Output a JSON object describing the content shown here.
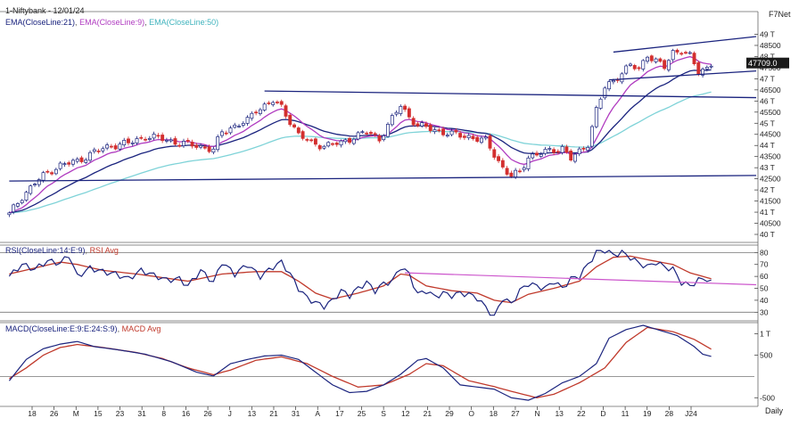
{
  "header": {
    "title": "1-Niftybank - 12/01/24",
    "brand": "F7Net",
    "ema21_label": "EMA(CloseLine:21)",
    "ema9_label": "EMA(CloseLine:9)",
    "ema50_label": "EMA(CloseLine:50)",
    "rsi_label": "RSI(CloseLine:14:E:9)",
    "rsi_avg_label": "RSI Avg",
    "macd_label": "MACD(CloseLine:E:9:E:24:S:9)",
    "macd_avg_label": "MACD Avg",
    "period_label": "Daily"
  },
  "colors": {
    "up": "#1a237e",
    "down": "#d32f2f",
    "ema9": "#b03bc0",
    "ema21": "#1a237e",
    "ema50": "#7fd3d8",
    "trendline": "#1a237e",
    "rsi": "#1a237e",
    "rsi_avg": "#c0392b",
    "rsi_trend": "#cc55cc",
    "macd": "#1a237e",
    "macd_avg": "#c0392b"
  },
  "chart_data": [
    {
      "type": "candlestick",
      "name": "price",
      "current_label": "47709.0",
      "yticks": [
        "49 T",
        "48500",
        "48 T",
        "47500",
        "47 T",
        "46500",
        "46 T",
        "45500",
        "45 T",
        "44500",
        "44 T",
        "43500",
        "43 T",
        "42500",
        "42 T",
        "41500",
        "41 T",
        "40500",
        "40 T"
      ],
      "ytick_values": [
        49000,
        48500,
        48000,
        47500,
        47000,
        46500,
        46000,
        45500,
        45000,
        44500,
        44000,
        43500,
        43000,
        42500,
        42000,
        41500,
        41000,
        40500,
        40000
      ],
      "ylim": [
        39800,
        49300
      ],
      "xticks": [
        "18",
        "26",
        "M",
        "15",
        "23",
        "31",
        "8",
        "16",
        "26",
        "J",
        "13",
        "21",
        "31",
        "A",
        "17",
        "25",
        "S",
        "12",
        "21",
        "29",
        "O",
        "18",
        "27",
        "N",
        "13",
        "22",
        "D",
        "11",
        "19",
        "28",
        "J24"
      ],
      "close_anchors": [
        [
          0,
          40900
        ],
        [
          3,
          41700
        ],
        [
          6,
          42300
        ],
        [
          9,
          42800
        ],
        [
          12,
          43100
        ],
        [
          16,
          43300
        ],
        [
          20,
          43700
        ],
        [
          24,
          44000
        ],
        [
          28,
          44100
        ],
        [
          32,
          44400
        ],
        [
          36,
          44300
        ],
        [
          40,
          44100
        ],
        [
          44,
          44000
        ],
        [
          48,
          43800
        ],
        [
          50,
          44600
        ],
        [
          52,
          44800
        ],
        [
          56,
          45100
        ],
        [
          58,
          45600
        ],
        [
          60,
          45800
        ],
        [
          62,
          46000
        ],
        [
          64,
          45700
        ],
        [
          66,
          45100
        ],
        [
          68,
          44500
        ],
        [
          71,
          44100
        ],
        [
          74,
          44000
        ],
        [
          78,
          44100
        ],
        [
          81,
          44400
        ],
        [
          84,
          44600
        ],
        [
          87,
          44300
        ],
        [
          90,
          45200
        ],
        [
          92,
          45800
        ],
        [
          94,
          45300
        ],
        [
          96,
          44900
        ],
        [
          100,
          44700
        ],
        [
          104,
          44500
        ],
        [
          108,
          44400
        ],
        [
          112,
          44200
        ],
        [
          114,
          43600
        ],
        [
          116,
          43000
        ],
        [
          118,
          42600
        ],
        [
          120,
          42800
        ],
        [
          122,
          43500
        ],
        [
          126,
          43700
        ],
        [
          130,
          43900
        ],
        [
          132,
          43400
        ],
        [
          134,
          43700
        ],
        [
          136,
          44100
        ],
        [
          138,
          45600
        ],
        [
          140,
          46600
        ],
        [
          142,
          46900
        ],
        [
          144,
          47300
        ],
        [
          146,
          47600
        ],
        [
          148,
          47400
        ],
        [
          150,
          48100
        ],
        [
          152,
          47800
        ],
        [
          154,
          47500
        ],
        [
          156,
          48200
        ],
        [
          158,
          48300
        ],
        [
          160,
          48000
        ],
        [
          162,
          47300
        ],
        [
          164,
          47500
        ],
        [
          165,
          47709
        ]
      ],
      "trendlines": [
        {
          "name": "support-42400",
          "points": [
            [
              0,
              42400
            ],
            [
              165,
              42650
            ]
          ]
        },
        {
          "name": "resistance-46100",
          "points": [
            [
              60,
              46450
            ],
            [
              165,
              46150
            ]
          ]
        },
        {
          "name": "channel-upper",
          "points": [
            [
              142,
              48200
            ],
            [
              166,
              48900
            ]
          ]
        },
        {
          "name": "channel-lower",
          "points": [
            [
              141,
              46950
            ],
            [
              166,
              47350
            ]
          ]
        }
      ]
    },
    {
      "type": "line",
      "name": "rsi",
      "yticks": [
        "80",
        "70",
        "60",
        "50",
        "40",
        "30"
      ],
      "ytick_values": [
        80,
        70,
        60,
        50,
        40,
        30
      ],
      "ylim": [
        25,
        84
      ],
      "anchors": [
        [
          0,
          60
        ],
        [
          3,
          70
        ],
        [
          6,
          66
        ],
        [
          9,
          73
        ],
        [
          12,
          71
        ],
        [
          14,
          78
        ],
        [
          16,
          60
        ],
        [
          19,
          67
        ],
        [
          22,
          64
        ],
        [
          25,
          62
        ],
        [
          28,
          58
        ],
        [
          31,
          65
        ],
        [
          34,
          61
        ],
        [
          37,
          57
        ],
        [
          40,
          58
        ],
        [
          42,
          52
        ],
        [
          45,
          65
        ],
        [
          48,
          55
        ],
        [
          50,
          72
        ],
        [
          53,
          62
        ],
        [
          56,
          70
        ],
        [
          59,
          60
        ],
        [
          62,
          68
        ],
        [
          64,
          72
        ],
        [
          66,
          62
        ],
        [
          68,
          50
        ],
        [
          70,
          42
        ],
        [
          72,
          38
        ],
        [
          74,
          35
        ],
        [
          76,
          40
        ],
        [
          78,
          48
        ],
        [
          80,
          44
        ],
        [
          82,
          50
        ],
        [
          84,
          55
        ],
        [
          86,
          48
        ],
        [
          88,
          54
        ],
        [
          90,
          56
        ],
        [
          92,
          68
        ],
        [
          94,
          62
        ],
        [
          96,
          45
        ],
        [
          98,
          48
        ],
        [
          100,
          43
        ],
        [
          102,
          46
        ],
        [
          104,
          44
        ],
        [
          106,
          46
        ],
        [
          108,
          45
        ],
        [
          110,
          42
        ],
        [
          112,
          34
        ],
        [
          114,
          26
        ],
        [
          116,
          42
        ],
        [
          118,
          37
        ],
        [
          120,
          48
        ],
        [
          122,
          54
        ],
        [
          124,
          52
        ],
        [
          126,
          50
        ],
        [
          128,
          56
        ],
        [
          130,
          50
        ],
        [
          132,
          58
        ],
        [
          134,
          60
        ],
        [
          136,
          70
        ],
        [
          138,
          80
        ],
        [
          140,
          82
        ],
        [
          142,
          78
        ],
        [
          144,
          80
        ],
        [
          146,
          76
        ],
        [
          148,
          71
        ],
        [
          150,
          68
        ],
        [
          152,
          72
        ],
        [
          154,
          68
        ],
        [
          156,
          66
        ],
        [
          158,
          55
        ],
        [
          160,
          52
        ],
        [
          162,
          57
        ],
        [
          164,
          58
        ],
        [
          165,
          55
        ]
      ],
      "avg_anchors": [
        [
          0,
          62
        ],
        [
          6,
          67
        ],
        [
          12,
          72
        ],
        [
          16,
          70
        ],
        [
          22,
          65
        ],
        [
          30,
          62
        ],
        [
          38,
          58
        ],
        [
          42,
          56
        ],
        [
          50,
          62
        ],
        [
          58,
          64
        ],
        [
          64,
          64
        ],
        [
          68,
          56
        ],
        [
          72,
          46
        ],
        [
          76,
          41
        ],
        [
          82,
          46
        ],
        [
          88,
          52
        ],
        [
          92,
          62
        ],
        [
          94,
          61
        ],
        [
          98,
          52
        ],
        [
          104,
          48
        ],
        [
          110,
          46
        ],
        [
          114,
          40
        ],
        [
          118,
          38
        ],
        [
          122,
          45
        ],
        [
          128,
          50
        ],
        [
          134,
          56
        ],
        [
          138,
          68
        ],
        [
          142,
          76
        ],
        [
          146,
          77
        ],
        [
          150,
          74
        ],
        [
          156,
          70
        ],
        [
          160,
          63
        ],
        [
          165,
          58
        ]
      ],
      "trendline": [
        [
          93,
          63
        ],
        [
          166,
          53
        ]
      ]
    },
    {
      "type": "line",
      "name": "macd",
      "yticks": [
        "1 T",
        "500",
        "-500"
      ],
      "ytick_values": [
        1000,
        500,
        -500
      ],
      "ylim": [
        -620,
        1180
      ],
      "zero_line": 0,
      "anchors": [
        [
          0,
          -100
        ],
        [
          4,
          400
        ],
        [
          8,
          650
        ],
        [
          12,
          760
        ],
        [
          16,
          820
        ],
        [
          20,
          700
        ],
        [
          26,
          620
        ],
        [
          32,
          520
        ],
        [
          38,
          350
        ],
        [
          44,
          100
        ],
        [
          48,
          10
        ],
        [
          52,
          300
        ],
        [
          56,
          400
        ],
        [
          60,
          480
        ],
        [
          64,
          500
        ],
        [
          68,
          400
        ],
        [
          72,
          100
        ],
        [
          76,
          -200
        ],
        [
          80,
          -380
        ],
        [
          84,
          -350
        ],
        [
          88,
          -200
        ],
        [
          92,
          50
        ],
        [
          96,
          380
        ],
        [
          98,
          420
        ],
        [
          102,
          200
        ],
        [
          106,
          -200
        ],
        [
          110,
          -250
        ],
        [
          114,
          -300
        ],
        [
          118,
          -500
        ],
        [
          122,
          -560
        ],
        [
          126,
          -400
        ],
        [
          130,
          -150
        ],
        [
          134,
          0
        ],
        [
          138,
          300
        ],
        [
          141,
          900
        ],
        [
          145,
          1100
        ],
        [
          149,
          1200
        ],
        [
          153,
          1080
        ],
        [
          157,
          960
        ],
        [
          161,
          700
        ],
        [
          163,
          520
        ],
        [
          165,
          470
        ]
      ],
      "avg_anchors": [
        [
          0,
          -50
        ],
        [
          4,
          200
        ],
        [
          8,
          500
        ],
        [
          12,
          680
        ],
        [
          16,
          750
        ],
        [
          22,
          680
        ],
        [
          30,
          560
        ],
        [
          36,
          420
        ],
        [
          42,
          200
        ],
        [
          48,
          40
        ],
        [
          52,
          150
        ],
        [
          58,
          380
        ],
        [
          64,
          460
        ],
        [
          70,
          300
        ],
        [
          76,
          0
        ],
        [
          82,
          -250
        ],
        [
          88,
          -200
        ],
        [
          94,
          50
        ],
        [
          98,
          300
        ],
        [
          102,
          250
        ],
        [
          108,
          -100
        ],
        [
          114,
          -240
        ],
        [
          118,
          -350
        ],
        [
          124,
          -500
        ],
        [
          128,
          -420
        ],
        [
          134,
          -150
        ],
        [
          140,
          200
        ],
        [
          145,
          800
        ],
        [
          150,
          1150
        ],
        [
          156,
          1050
        ],
        [
          161,
          870
        ],
        [
          165,
          640
        ]
      ]
    }
  ]
}
